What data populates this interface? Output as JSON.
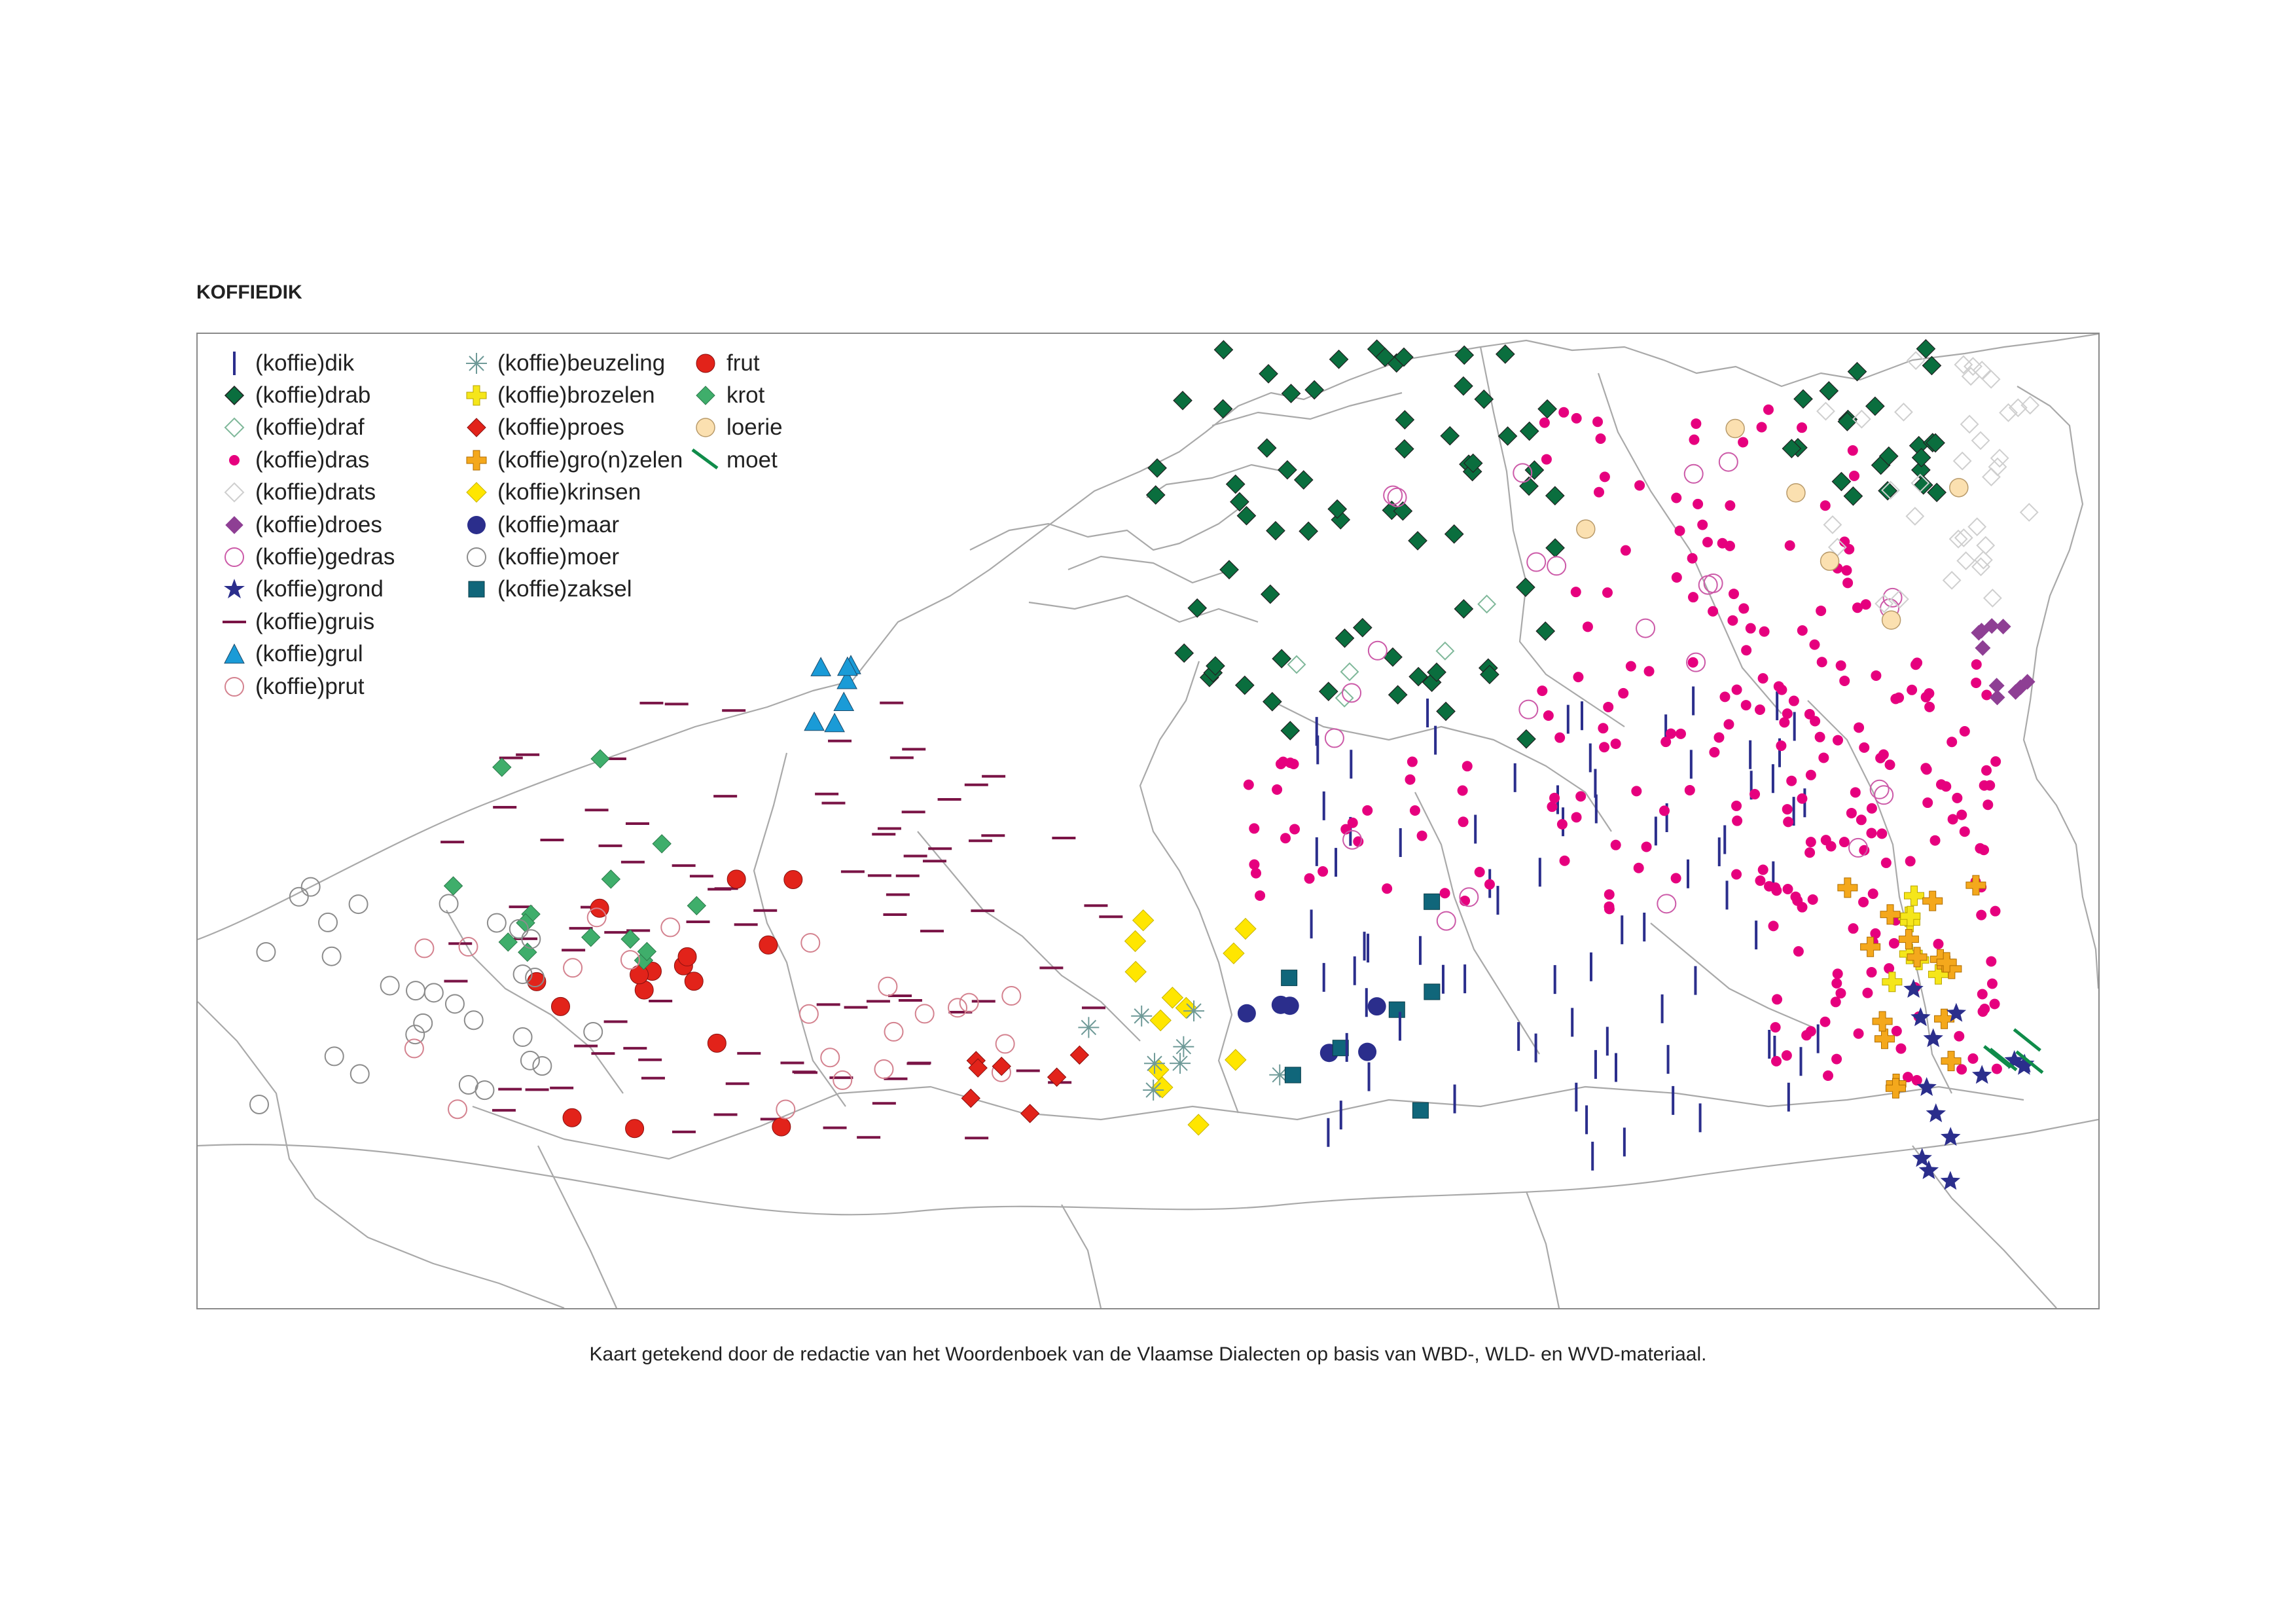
{
  "map": {
    "title": "KOFFIEDIK",
    "caption": "Kaart getekend door de redactie van het Woordenboek van de Vlaamse Dialecten op basis van WBD-, WLD- en WVD-materiaal."
  },
  "legend": {
    "columns": [
      [
        {
          "id": "dik",
          "label": "(koffie)dik",
          "symbol": "bar-vertical",
          "color": "#2b2e8c"
        },
        {
          "id": "drab",
          "label": "(koffie)drab",
          "symbol": "diamond-filled",
          "color": "#0a6e3e"
        },
        {
          "id": "draf",
          "label": "(koffie)draf",
          "symbol": "diamond-outline",
          "color": "#7fb89a"
        },
        {
          "id": "dras",
          "label": "(koffie)dras",
          "symbol": "dot-small",
          "color": "#e6007e"
        },
        {
          "id": "drats",
          "label": "(koffie)drats",
          "symbol": "diamond-outline",
          "color": "#cfcfcf"
        },
        {
          "id": "droes",
          "label": "(koffie)droes",
          "symbol": "diamond-filled",
          "color": "#8e3f94"
        },
        {
          "id": "gedras",
          "label": "(koffie)gedras",
          "symbol": "circle-outline",
          "color": "#cc5aa8"
        },
        {
          "id": "grond",
          "label": "(koffie)grond",
          "symbol": "star",
          "color": "#2b2e8c"
        },
        {
          "id": "gruis",
          "label": "(koffie)gruis",
          "symbol": "bar-horizontal",
          "color": "#7a1446"
        },
        {
          "id": "grul",
          "label": "(koffie)grul",
          "symbol": "triangle",
          "color": "#1a9bd7"
        },
        {
          "id": "prut",
          "label": "(koffie)prut",
          "symbol": "circle-outline",
          "color": "#d4828f"
        }
      ],
      [
        {
          "id": "beuzeling",
          "label": "(koffie)beuzeling",
          "symbol": "asterisk",
          "color": "#6f9a98"
        },
        {
          "id": "brozelen",
          "label": "(koffie)brozelen",
          "symbol": "cross",
          "color": "#f5e61a"
        },
        {
          "id": "proes",
          "label": "(koffie)proes",
          "symbol": "diamond-filled",
          "color": "#e2231a"
        },
        {
          "id": "gronzelen",
          "label": "(koffie)gro(n)zelen",
          "symbol": "cross",
          "color": "#f4a81c"
        },
        {
          "id": "krinsen",
          "label": "(koffie)krinsen",
          "symbol": "diamond-filled",
          "color": "#ffe600"
        },
        {
          "id": "maar",
          "label": "(koffie)maar",
          "symbol": "circle-filled",
          "color": "#2b2e8c"
        },
        {
          "id": "moer",
          "label": "(koffie)moer",
          "symbol": "circle-outline",
          "color": "#8c8c8c"
        },
        {
          "id": "zaksel",
          "label": "(koffie)zaksel",
          "symbol": "square-filled",
          "color": "#10667a"
        }
      ],
      [
        {
          "id": "frut",
          "label": "frut",
          "symbol": "circle-filled",
          "color": "#e2231a"
        },
        {
          "id": "krot",
          "label": "krot",
          "symbol": "diamond-filled",
          "color": "#3fae6b"
        },
        {
          "id": "loerie",
          "label": "loerie",
          "symbol": "circle-filled",
          "color": "#fbe0b0"
        },
        {
          "id": "moet",
          "label": "moet",
          "symbol": "bar-diagonal",
          "color": "#0f8c4a"
        }
      ]
    ]
  }
}
